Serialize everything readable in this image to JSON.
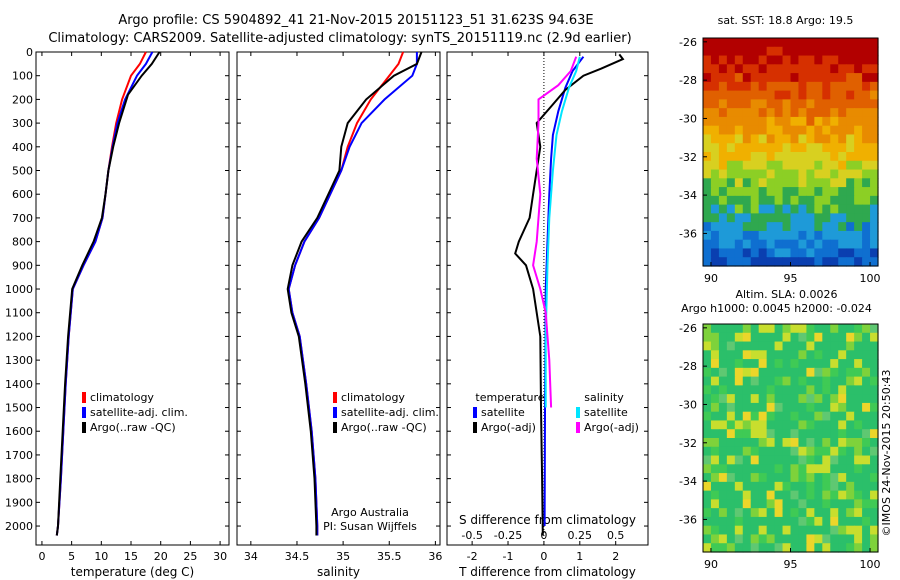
{
  "header": {
    "line1": "Argo profile: CS 5904892_41 21-Nov-2015 20151123_51 31.623S 94.63E",
    "line2": "Climatology: CARS2009. Satellite-adjusted climatology: synTS_20151119.nc (2.9d earlier)"
  },
  "colors": {
    "climatology": "#ff0000",
    "satellite": "#0000ff",
    "argo": "#000000",
    "sal_satellite": "#00e5ff",
    "sal_argo": "#ff00ff"
  },
  "chart_data": [
    {
      "type": "line",
      "xlabel": "temperature (deg C)",
      "xticks": [
        0,
        5,
        10,
        15,
        20,
        25,
        30
      ],
      "xlim": [
        -1,
        31.5
      ],
      "ylim": [
        2080,
        0
      ],
      "yticks": [
        0,
        100,
        200,
        300,
        400,
        500,
        600,
        700,
        800,
        900,
        1000,
        1100,
        1200,
        1300,
        1400,
        1500,
        1600,
        1700,
        1800,
        1900,
        2000
      ],
      "legend": [
        "climatology",
        "satellite-adj. clim.",
        "Argo(..raw -QC)"
      ],
      "series": [
        {
          "name": "climatology",
          "color": "#ff0000",
          "points": [
            [
              17.5,
              0
            ],
            [
              16.5,
              50
            ],
            [
              15,
              100
            ],
            [
              13.5,
              200
            ],
            [
              12.5,
              300
            ],
            [
              11.8,
              400
            ],
            [
              11.2,
              500
            ],
            [
              10.7,
              600
            ],
            [
              10.2,
              700
            ],
            [
              9,
              800
            ],
            [
              7,
              900
            ],
            [
              5.2,
              1000
            ],
            [
              4.5,
              1200
            ],
            [
              4,
              1400
            ],
            [
              3.6,
              1600
            ],
            [
              3.2,
              1800
            ],
            [
              2.7,
              2000
            ],
            [
              2.5,
              2040
            ]
          ]
        },
        {
          "name": "satellite-adj. clim.",
          "color": "#0000ff",
          "points": [
            [
              18.6,
              0
            ],
            [
              17.5,
              50
            ],
            [
              16,
              100
            ],
            [
              14,
              200
            ],
            [
              12.7,
              300
            ],
            [
              11.9,
              400
            ],
            [
              11.2,
              500
            ],
            [
              10.7,
              600
            ],
            [
              10.2,
              700
            ],
            [
              9,
              800
            ],
            [
              7,
              900
            ],
            [
              5.2,
              1000
            ],
            [
              4.5,
              1200
            ],
            [
              4,
              1400
            ],
            [
              3.6,
              1600
            ],
            [
              3.2,
              1800
            ],
            [
              2.7,
              2000
            ],
            [
              2.5,
              2040
            ]
          ]
        },
        {
          "name": "Argo(..raw -QC)",
          "color": "#000000",
          "points": [
            [
              19.8,
              0
            ],
            [
              18.5,
              50
            ],
            [
              16.8,
              100
            ],
            [
              14.5,
              180
            ],
            [
              13,
              300
            ],
            [
              12,
              400
            ],
            [
              11.2,
              500
            ],
            [
              10.7,
              600
            ],
            [
              10.1,
              700
            ],
            [
              8.7,
              800
            ],
            [
              6.8,
              900
            ],
            [
              5.1,
              1000
            ],
            [
              4.4,
              1200
            ],
            [
              3.9,
              1400
            ],
            [
              3.5,
              1600
            ],
            [
              3.1,
              1800
            ],
            [
              2.7,
              2000
            ],
            [
              2.5,
              2040
            ]
          ]
        }
      ]
    },
    {
      "type": "line",
      "xlabel": "salinity",
      "xticks": [
        34,
        34.5,
        35,
        35.5,
        36
      ],
      "xlim": [
        33.85,
        36.05
      ],
      "ylim": [
        2080,
        0
      ],
      "legend": [
        "climatology",
        "satellite-adj. clim.",
        "Argo(..raw -QC)"
      ],
      "annotation": [
        "Argo Australia",
        "PI: Susan Wijffels"
      ],
      "series": [
        {
          "name": "climatology",
          "color": "#ff0000",
          "points": [
            [
              35.65,
              0
            ],
            [
              35.6,
              50
            ],
            [
              35.5,
              100
            ],
            [
              35.3,
              200
            ],
            [
              35.15,
              300
            ],
            [
              35.05,
              400
            ],
            [
              34.98,
              500
            ],
            [
              34.86,
              600
            ],
            [
              34.74,
              700
            ],
            [
              34.58,
              800
            ],
            [
              34.48,
              900
            ],
            [
              34.41,
              1000
            ],
            [
              34.45,
              1100
            ],
            [
              34.53,
              1200
            ],
            [
              34.6,
              1400
            ],
            [
              34.66,
              1600
            ],
            [
              34.7,
              1800
            ],
            [
              34.72,
              2000
            ],
            [
              34.72,
              2040
            ]
          ]
        },
        {
          "name": "satellite-adj. clim.",
          "color": "#0000ff",
          "points": [
            [
              35.8,
              0
            ],
            [
              35.8,
              50
            ],
            [
              35.75,
              100
            ],
            [
              35.45,
              200
            ],
            [
              35.2,
              300
            ],
            [
              35.07,
              400
            ],
            [
              34.98,
              500
            ],
            [
              34.86,
              600
            ],
            [
              34.74,
              700
            ],
            [
              34.58,
              800
            ],
            [
              34.48,
              900
            ],
            [
              34.41,
              1000
            ],
            [
              34.45,
              1100
            ],
            [
              34.53,
              1200
            ],
            [
              34.6,
              1400
            ],
            [
              34.66,
              1600
            ],
            [
              34.7,
              1800
            ],
            [
              34.72,
              2000
            ],
            [
              34.72,
              2040
            ]
          ]
        },
        {
          "name": "Argo(..raw -QC)",
          "color": "#000000",
          "points": [
            [
              35.85,
              0
            ],
            [
              35.8,
              50
            ],
            [
              35.55,
              100
            ],
            [
              35.25,
              200
            ],
            [
              35.05,
              300
            ],
            [
              34.98,
              400
            ],
            [
              34.96,
              500
            ],
            [
              34.84,
              600
            ],
            [
              34.72,
              700
            ],
            [
              34.55,
              800
            ],
            [
              34.45,
              900
            ],
            [
              34.4,
              1000
            ],
            [
              34.44,
              1100
            ],
            [
              34.52,
              1200
            ],
            [
              34.59,
              1400
            ],
            [
              34.65,
              1600
            ],
            [
              34.69,
              1800
            ],
            [
              34.71,
              2000
            ],
            [
              34.71,
              2040
            ]
          ]
        }
      ]
    },
    {
      "type": "line",
      "xlabel": "T difference from climatology",
      "top_xlabel": "S difference from climatology",
      "xticks": [
        -2,
        -1,
        0,
        1,
        2
      ],
      "top_xticks": [
        "-0.5",
        "-0.25",
        "0",
        "0.25",
        "0.5"
      ],
      "xlim": [
        -2.7,
        2.9
      ],
      "ylim": [
        2080,
        0
      ],
      "legend_headers": [
        "temperature",
        "salinity"
      ],
      "legend": [
        "satellite",
        "Argo(-adj)",
        "satellite",
        "Argo(-adj)"
      ],
      "series": [
        {
          "name": "satellite",
          "color": "#0000ff",
          "points": [
            [
              1.1,
              20
            ],
            [
              0.8,
              80
            ],
            [
              0.6,
              150
            ],
            [
              0.4,
              250
            ],
            [
              0.25,
              350
            ],
            [
              0.2,
              450
            ],
            [
              0.15,
              600
            ],
            [
              0.1,
              800
            ],
            [
              0.05,
              1000
            ],
            [
              0.03,
              1500
            ],
            [
              0.02,
              2000
            ]
          ]
        },
        {
          "name": "Argo(-adj)",
          "color": "#000000",
          "points": [
            [
              2.1,
              10
            ],
            [
              2.2,
              30
            ],
            [
              1.6,
              70
            ],
            [
              1.1,
              100
            ],
            [
              0.6,
              160
            ],
            [
              0.2,
              230
            ],
            [
              -0.2,
              300
            ],
            [
              -0.1,
              400
            ],
            [
              -0.3,
              600
            ],
            [
              -0.4,
              700
            ],
            [
              -0.7,
              800
            ],
            [
              -0.8,
              850
            ],
            [
              -0.5,
              900
            ],
            [
              -0.3,
              1000
            ],
            [
              -0.1,
              1200
            ],
            [
              -0.08,
              1500
            ],
            [
              -0.05,
              1800
            ],
            [
              -0.03,
              2040
            ]
          ]
        },
        {
          "name": "satellite",
          "color": "#00e5ff",
          "points": [
            [
              1.0,
              20
            ],
            [
              0.9,
              80
            ],
            [
              0.7,
              150
            ],
            [
              0.5,
              250
            ],
            [
              0.35,
              350
            ],
            [
              0.25,
              500
            ],
            [
              0.15,
              700
            ],
            [
              0.1,
              900
            ],
            [
              0.05,
              1200
            ],
            [
              0.05,
              1500
            ]
          ]
        },
        {
          "name": "Argo(-adj)",
          "color": "#ff00ff",
          "points": [
            [
              0.9,
              20
            ],
            [
              0.75,
              80
            ],
            [
              0.4,
              140
            ],
            [
              -0.15,
              200
            ],
            [
              -0.15,
              300
            ],
            [
              -0.2,
              450
            ],
            [
              -0.1,
              600
            ],
            [
              -0.2,
              800
            ],
            [
              -0.3,
              900
            ],
            [
              -0.1,
              1000
            ],
            [
              0.05,
              1100
            ],
            [
              0.15,
              1300
            ],
            [
              0.2,
              1500
            ]
          ]
        }
      ]
    },
    {
      "type": "heatmap",
      "title": "sat. SST: 18.8 Argo: 19.5",
      "xticks": [
        90,
        95,
        100
      ],
      "yticks": [
        -26,
        -28,
        -30,
        -32,
        -34,
        -36
      ],
      "xlim": [
        89.5,
        100.5
      ],
      "ylim": [
        -37.7,
        -25.8
      ]
    },
    {
      "type": "heatmap",
      "title": [
        "Altim. SLA: 0.0026",
        "Argo h1000: 0.0045 h2000: -0.024"
      ],
      "xticks": [
        90,
        95,
        100
      ],
      "yticks": [
        -26,
        -28,
        -30,
        -32,
        -34,
        -36
      ],
      "xlim": [
        89.5,
        100.5
      ],
      "ylim": [
        -37.7,
        -25.8
      ]
    }
  ],
  "credit": "©IMOS 24-Nov-2015 20:50:43"
}
